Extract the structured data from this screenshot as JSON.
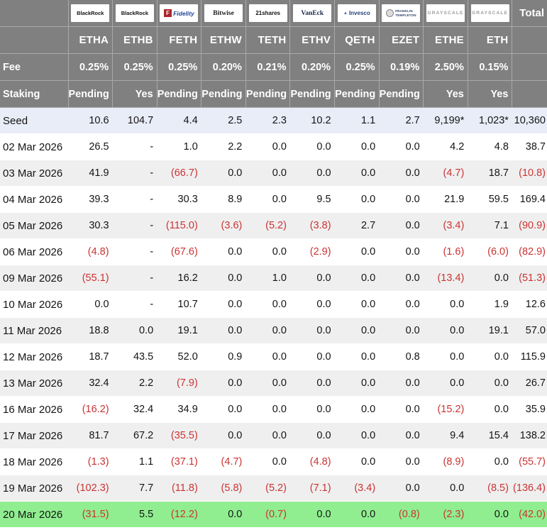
{
  "table": {
    "corner_label": "",
    "total_label": "Total",
    "fee_row_label": "Fee",
    "staking_row_label": "Staking",
    "funds": [
      {
        "issuer": "BlackRock",
        "ticker": "ETHA",
        "fee": "0.25%",
        "staking": "Pending",
        "logo": "blackrock"
      },
      {
        "issuer": "BlackRock",
        "ticker": "ETHB",
        "fee": "0.25%",
        "staking": "Yes",
        "logo": "blackrock"
      },
      {
        "issuer": "Fidelity",
        "ticker": "FETH",
        "fee": "0.25%",
        "staking": "Pending",
        "logo": "fidelity"
      },
      {
        "issuer": "Bitwise",
        "ticker": "ETHW",
        "fee": "0.20%",
        "staking": "Pending",
        "logo": "bitwise"
      },
      {
        "issuer": "21shares",
        "ticker": "TETH",
        "fee": "0.21%",
        "staking": "Pending",
        "logo": "21shares"
      },
      {
        "issuer": "VanEck",
        "ticker": "ETHV",
        "fee": "0.20%",
        "staking": "Pending",
        "logo": "vaneck"
      },
      {
        "issuer": "Invesco",
        "ticker": "QETH",
        "fee": "0.25%",
        "staking": "Pending",
        "logo": "invesco"
      },
      {
        "issuer": "Franklin Templeton",
        "ticker": "EZET",
        "fee": "0.19%",
        "staking": "Pending",
        "logo": "franklin"
      },
      {
        "issuer": "Grayscale",
        "ticker": "ETHE",
        "fee": "2.50%",
        "staking": "Yes",
        "logo": "grayscale"
      },
      {
        "issuer": "Grayscale",
        "ticker": "ETH",
        "fee": "0.15%",
        "staking": "Yes",
        "logo": "grayscale"
      }
    ],
    "rows": [
      {
        "label": "Seed",
        "highlight": "seed",
        "values": [
          "10.6",
          "104.7",
          "4.4",
          "2.5",
          "2.3",
          "10.2",
          "1.1",
          "2.7",
          "9,199*",
          "1,023*",
          "10,360"
        ]
      },
      {
        "label": "02 Mar 2026",
        "highlight": null,
        "values": [
          "26.5",
          "-",
          "1.0",
          "2.2",
          "0.0",
          "0.0",
          "0.0",
          "0.0",
          "4.2",
          "4.8",
          "38.7"
        ]
      },
      {
        "label": "03 Mar 2026",
        "highlight": null,
        "values": [
          "41.9",
          "-",
          "(66.7)",
          "0.0",
          "0.0",
          "0.0",
          "0.0",
          "0.0",
          "(4.7)",
          "18.7",
          "(10.8)"
        ]
      },
      {
        "label": "04 Mar 2026",
        "highlight": null,
        "values": [
          "39.3",
          "-",
          "30.3",
          "8.9",
          "0.0",
          "9.5",
          "0.0",
          "0.0",
          "21.9",
          "59.5",
          "169.4"
        ]
      },
      {
        "label": "05 Mar 2026",
        "highlight": null,
        "values": [
          "30.3",
          "-",
          "(115.0)",
          "(3.6)",
          "(5.2)",
          "(3.8)",
          "2.7",
          "0.0",
          "(3.4)",
          "7.1",
          "(90.9)"
        ]
      },
      {
        "label": "06 Mar 2026",
        "highlight": null,
        "values": [
          "(4.8)",
          "-",
          "(67.6)",
          "0.0",
          "0.0",
          "(2.9)",
          "0.0",
          "0.0",
          "(1.6)",
          "(6.0)",
          "(82.9)"
        ]
      },
      {
        "label": "09 Mar 2026",
        "highlight": null,
        "values": [
          "(55.1)",
          "-",
          "16.2",
          "0.0",
          "1.0",
          "0.0",
          "0.0",
          "0.0",
          "(13.4)",
          "0.0",
          "(51.3)"
        ]
      },
      {
        "label": "10 Mar 2026",
        "highlight": null,
        "values": [
          "0.0",
          "-",
          "10.7",
          "0.0",
          "0.0",
          "0.0",
          "0.0",
          "0.0",
          "0.0",
          "1.9",
          "12.6"
        ]
      },
      {
        "label": "11 Mar 2026",
        "highlight": null,
        "values": [
          "18.8",
          "0.0",
          "19.1",
          "0.0",
          "0.0",
          "0.0",
          "0.0",
          "0.0",
          "0.0",
          "19.1",
          "57.0"
        ]
      },
      {
        "label": "12 Mar 2026",
        "highlight": null,
        "values": [
          "18.7",
          "43.5",
          "52.0",
          "0.9",
          "0.0",
          "0.0",
          "0.0",
          "0.8",
          "0.0",
          "0.0",
          "115.9"
        ]
      },
      {
        "label": "13 Mar 2026",
        "highlight": null,
        "values": [
          "32.4",
          "2.2",
          "(7.9)",
          "0.0",
          "0.0",
          "0.0",
          "0.0",
          "0.0",
          "0.0",
          "0.0",
          "26.7"
        ]
      },
      {
        "label": "16 Mar 2026",
        "highlight": null,
        "values": [
          "(16.2)",
          "32.4",
          "34.9",
          "0.0",
          "0.0",
          "0.0",
          "0.0",
          "0.0",
          "(15.2)",
          "0.0",
          "35.9"
        ]
      },
      {
        "label": "17 Mar 2026",
        "highlight": null,
        "values": [
          "81.7",
          "67.2",
          "(35.5)",
          "0.0",
          "0.0",
          "0.0",
          "0.0",
          "0.0",
          "9.4",
          "15.4",
          "138.2"
        ]
      },
      {
        "label": "18 Mar 2026",
        "highlight": null,
        "values": [
          "(1.3)",
          "1.1",
          "(37.1)",
          "(4.7)",
          "0.0",
          "(4.8)",
          "0.0",
          "0.0",
          "(8.9)",
          "0.0",
          "(55.7)"
        ]
      },
      {
        "label": "19 Mar 2026",
        "highlight": null,
        "values": [
          "(102.3)",
          "7.7",
          "(11.8)",
          "(5.8)",
          "(5.2)",
          "(7.1)",
          "(3.4)",
          "0.0",
          "0.0",
          "(8.5)",
          "(136.4)"
        ]
      },
      {
        "label": "20 Mar 2026",
        "highlight": "green",
        "values": [
          "(31.5)",
          "5.5",
          "(12.2)",
          "0.0",
          "(0.7)",
          "0.0",
          "0.0",
          "(0.8)",
          "(2.3)",
          "0.0",
          "(42.0)"
        ]
      }
    ]
  },
  "colors": {
    "header_bg": "#808080",
    "seed_row_bg": "#e9edf8",
    "stripe_bg": "#efefef",
    "green_row_bg": "#90ee90",
    "negative_text": "#cc3333"
  }
}
